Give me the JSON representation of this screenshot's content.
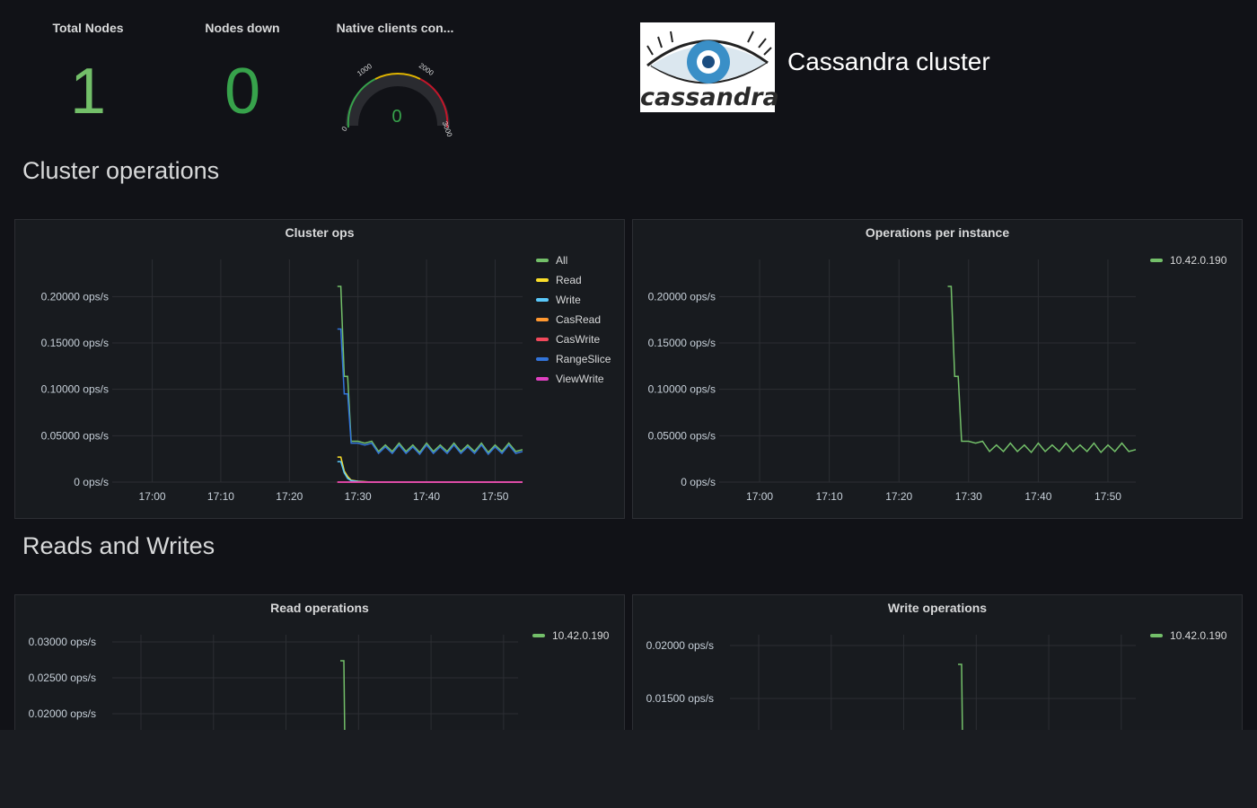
{
  "stats": {
    "total_nodes": {
      "title": "Total Nodes",
      "value": "1"
    },
    "nodes_down": {
      "title": "Nodes down",
      "value": "0"
    },
    "native_clients": {
      "title": "Native clients con...",
      "value": "0",
      "min": "0",
      "t1": "1000",
      "t2": "2000",
      "max": "3000",
      "level": 0
    }
  },
  "header": {
    "title": "Cassandra cluster",
    "logo_text": "cassandra"
  },
  "sections": {
    "cluster": "Cluster operations",
    "rw": "Reads and Writes"
  },
  "colors": {
    "green": "#73bf69",
    "yellow": "#fade2a",
    "light_blue": "#5794f2",
    "cyan": "#8ab8ff",
    "orange": "#ff9830",
    "red": "#f2495c",
    "blue": "#3274d9",
    "purple": "#b877d9"
  },
  "panels": {
    "cluster_ops": {
      "title": "Cluster ops",
      "legend": [
        {
          "label": "All",
          "color": "#73bf69"
        },
        {
          "label": "Read",
          "color": "#fade2a"
        },
        {
          "label": "Write",
          "color": "#5ac8fa"
        },
        {
          "label": "CasRead",
          "color": "#ff9830"
        },
        {
          "label": "CasWrite",
          "color": "#f2495c"
        },
        {
          "label": "RangeSlice",
          "color": "#3274d9"
        },
        {
          "label": "ViewWrite",
          "color": "#e040c0"
        }
      ]
    },
    "ops_per_instance": {
      "title": "Operations per instance",
      "legend": [
        {
          "label": "10.42.0.190",
          "color": "#73bf69"
        }
      ]
    },
    "read_ops": {
      "title": "Read operations",
      "legend": [
        {
          "label": "10.42.0.190",
          "color": "#73bf69"
        }
      ]
    },
    "write_ops": {
      "title": "Write operations",
      "legend": [
        {
          "label": "10.42.0.190",
          "color": "#73bf69"
        }
      ]
    }
  },
  "chart_data": [
    {
      "type": "line",
      "title": "Cluster ops",
      "x_ticks": [
        "17:00",
        "17:10",
        "17:20",
        "17:30",
        "17:40",
        "17:50"
      ],
      "y_ticks": [
        "0 ops/s",
        "0.05000 ops/s",
        "0.10000 ops/s",
        "0.15000 ops/s",
        "0.20000 ops/s"
      ],
      "ylim": [
        0,
        0.24
      ],
      "x": [
        "17:27",
        "17:27.5",
        "17:28",
        "17:28.5",
        "17:29",
        "17:30",
        "17:31",
        "17:32",
        "17:33",
        "17:34",
        "17:35",
        "17:36",
        "17:37",
        "17:38",
        "17:39",
        "17:40",
        "17:41",
        "17:42",
        "17:43",
        "17:44",
        "17:45",
        "17:46",
        "17:47",
        "17:48",
        "17:49",
        "17:50",
        "17:51",
        "17:52",
        "17:53",
        "17:54"
      ],
      "series": [
        {
          "name": "All",
          "color": "#73bf69",
          "values": [
            0.211,
            0.211,
            0.114,
            0.114,
            0.044,
            0.044,
            0.042,
            0.044,
            0.033,
            0.04,
            0.033,
            0.042,
            0.033,
            0.04,
            0.032,
            0.042,
            0.033,
            0.04,
            0.033,
            0.042,
            0.033,
            0.04,
            0.033,
            0.042,
            0.032,
            0.04,
            0.033,
            0.042,
            0.033,
            0.035
          ]
        },
        {
          "name": "Read",
          "color": "#fade2a",
          "values": [
            0.027,
            0.027,
            0.012,
            0.006,
            0.002,
            0.001,
            0.0005,
            0,
            0,
            0,
            0,
            0,
            0,
            0,
            0,
            0,
            0,
            0,
            0,
            0,
            0,
            0,
            0,
            0,
            0,
            0,
            0,
            0,
            0,
            0
          ]
        },
        {
          "name": "Write",
          "color": "#5ac8fa",
          "values": [
            0.022,
            0.022,
            0.01,
            0.004,
            0.0015,
            0.0008,
            0.0003,
            0,
            0,
            0,
            0,
            0,
            0,
            0,
            0,
            0,
            0,
            0,
            0,
            0,
            0,
            0,
            0,
            0,
            0,
            0,
            0,
            0,
            0,
            0
          ]
        },
        {
          "name": "CasRead",
          "color": "#ff9830",
          "values": [
            0,
            0,
            0,
            0,
            0,
            0,
            0,
            0,
            0,
            0,
            0,
            0,
            0,
            0,
            0,
            0,
            0,
            0,
            0,
            0,
            0,
            0,
            0,
            0,
            0,
            0,
            0,
            0,
            0,
            0
          ]
        },
        {
          "name": "CasWrite",
          "color": "#f2495c",
          "values": [
            0,
            0,
            0,
            0,
            0,
            0,
            0,
            0,
            0,
            0,
            0,
            0,
            0,
            0,
            0,
            0,
            0,
            0,
            0,
            0,
            0,
            0,
            0,
            0,
            0,
            0,
            0,
            0,
            0,
            0
          ]
        },
        {
          "name": "RangeSlice",
          "color": "#3274d9",
          "values": [
            0.165,
            0.165,
            0.095,
            0.095,
            0.042,
            0.042,
            0.04,
            0.042,
            0.031,
            0.038,
            0.031,
            0.04,
            0.031,
            0.038,
            0.03,
            0.04,
            0.031,
            0.038,
            0.031,
            0.04,
            0.031,
            0.038,
            0.031,
            0.04,
            0.03,
            0.038,
            0.031,
            0.04,
            0.031,
            0.033
          ]
        },
        {
          "name": "ViewWrite",
          "color": "#e040c0",
          "values": [
            0,
            0,
            0,
            0,
            0,
            0,
            0,
            0,
            0,
            0,
            0,
            0,
            0,
            0,
            0,
            0,
            0,
            0,
            0,
            0,
            0,
            0,
            0,
            0,
            0,
            0,
            0,
            0,
            0,
            0
          ]
        }
      ]
    },
    {
      "type": "line",
      "title": "Operations per instance",
      "x_ticks": [
        "17:00",
        "17:10",
        "17:20",
        "17:30",
        "17:40",
        "17:50"
      ],
      "y_ticks": [
        "0 ops/s",
        "0.05000 ops/s",
        "0.10000 ops/s",
        "0.15000 ops/s",
        "0.20000 ops/s"
      ],
      "ylim": [
        0,
        0.24
      ],
      "series": [
        {
          "name": "10.42.0.190",
          "color": "#73bf69",
          "values": [
            0.211,
            0.211,
            0.114,
            0.114,
            0.044,
            0.044,
            0.042,
            0.044,
            0.033,
            0.04,
            0.033,
            0.042,
            0.033,
            0.04,
            0.032,
            0.042,
            0.033,
            0.04,
            0.033,
            0.042,
            0.033,
            0.04,
            0.033,
            0.042,
            0.032,
            0.04,
            0.033,
            0.042,
            0.033,
            0.035
          ]
        }
      ]
    },
    {
      "type": "line",
      "title": "Read operations",
      "x_ticks": [],
      "y_ticks": [
        "0.02000 ops/s",
        "0.02500 ops/s",
        "0.03000 ops/s"
      ],
      "series": [
        {
          "name": "10.42.0.190",
          "color": "#73bf69",
          "values": [
            0.0275,
            0.0275,
            0.018
          ]
        }
      ]
    },
    {
      "type": "line",
      "title": "Write operations",
      "x_ticks": [],
      "y_ticks": [
        "0.01500 ops/s",
        "0.02000 ops/s"
      ],
      "series": [
        {
          "name": "10.42.0.190",
          "color": "#73bf69",
          "values": [
            0.0183,
            0.0183,
            0.012
          ]
        }
      ]
    }
  ]
}
